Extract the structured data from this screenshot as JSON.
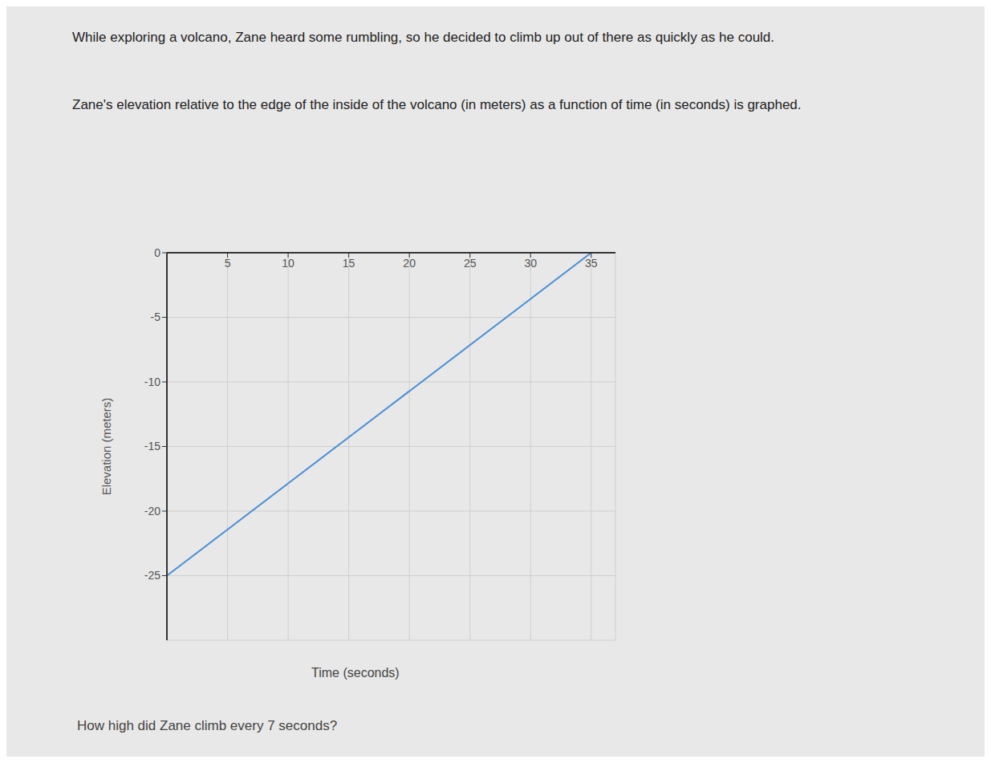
{
  "chart_data": {
    "type": "line",
    "annotations": [
      "While exploring a volcano, Zane heard some rumbling, so he decided to climb up out of there as quickly as he could.",
      "Zane's elevation relative to the edge of the inside of the volcano (in meters) as a function of time (in seconds) is graphed.",
      "How high did Zane climb every 7 seconds?"
    ],
    "x_label": "Time (seconds)",
    "y_label": "Elevation (meters)",
    "x": [
      0,
      35
    ],
    "values": [
      -25,
      0
    ],
    "color": "#4a8fd6",
    "xlim": [
      0,
      37
    ],
    "ylim": [
      -30,
      0
    ],
    "xticks": [
      5,
      10,
      15,
      20,
      25,
      30,
      35
    ],
    "yticks": [
      -25,
      -20,
      -15,
      -10,
      -5,
      0
    ],
    "grid": true
  }
}
